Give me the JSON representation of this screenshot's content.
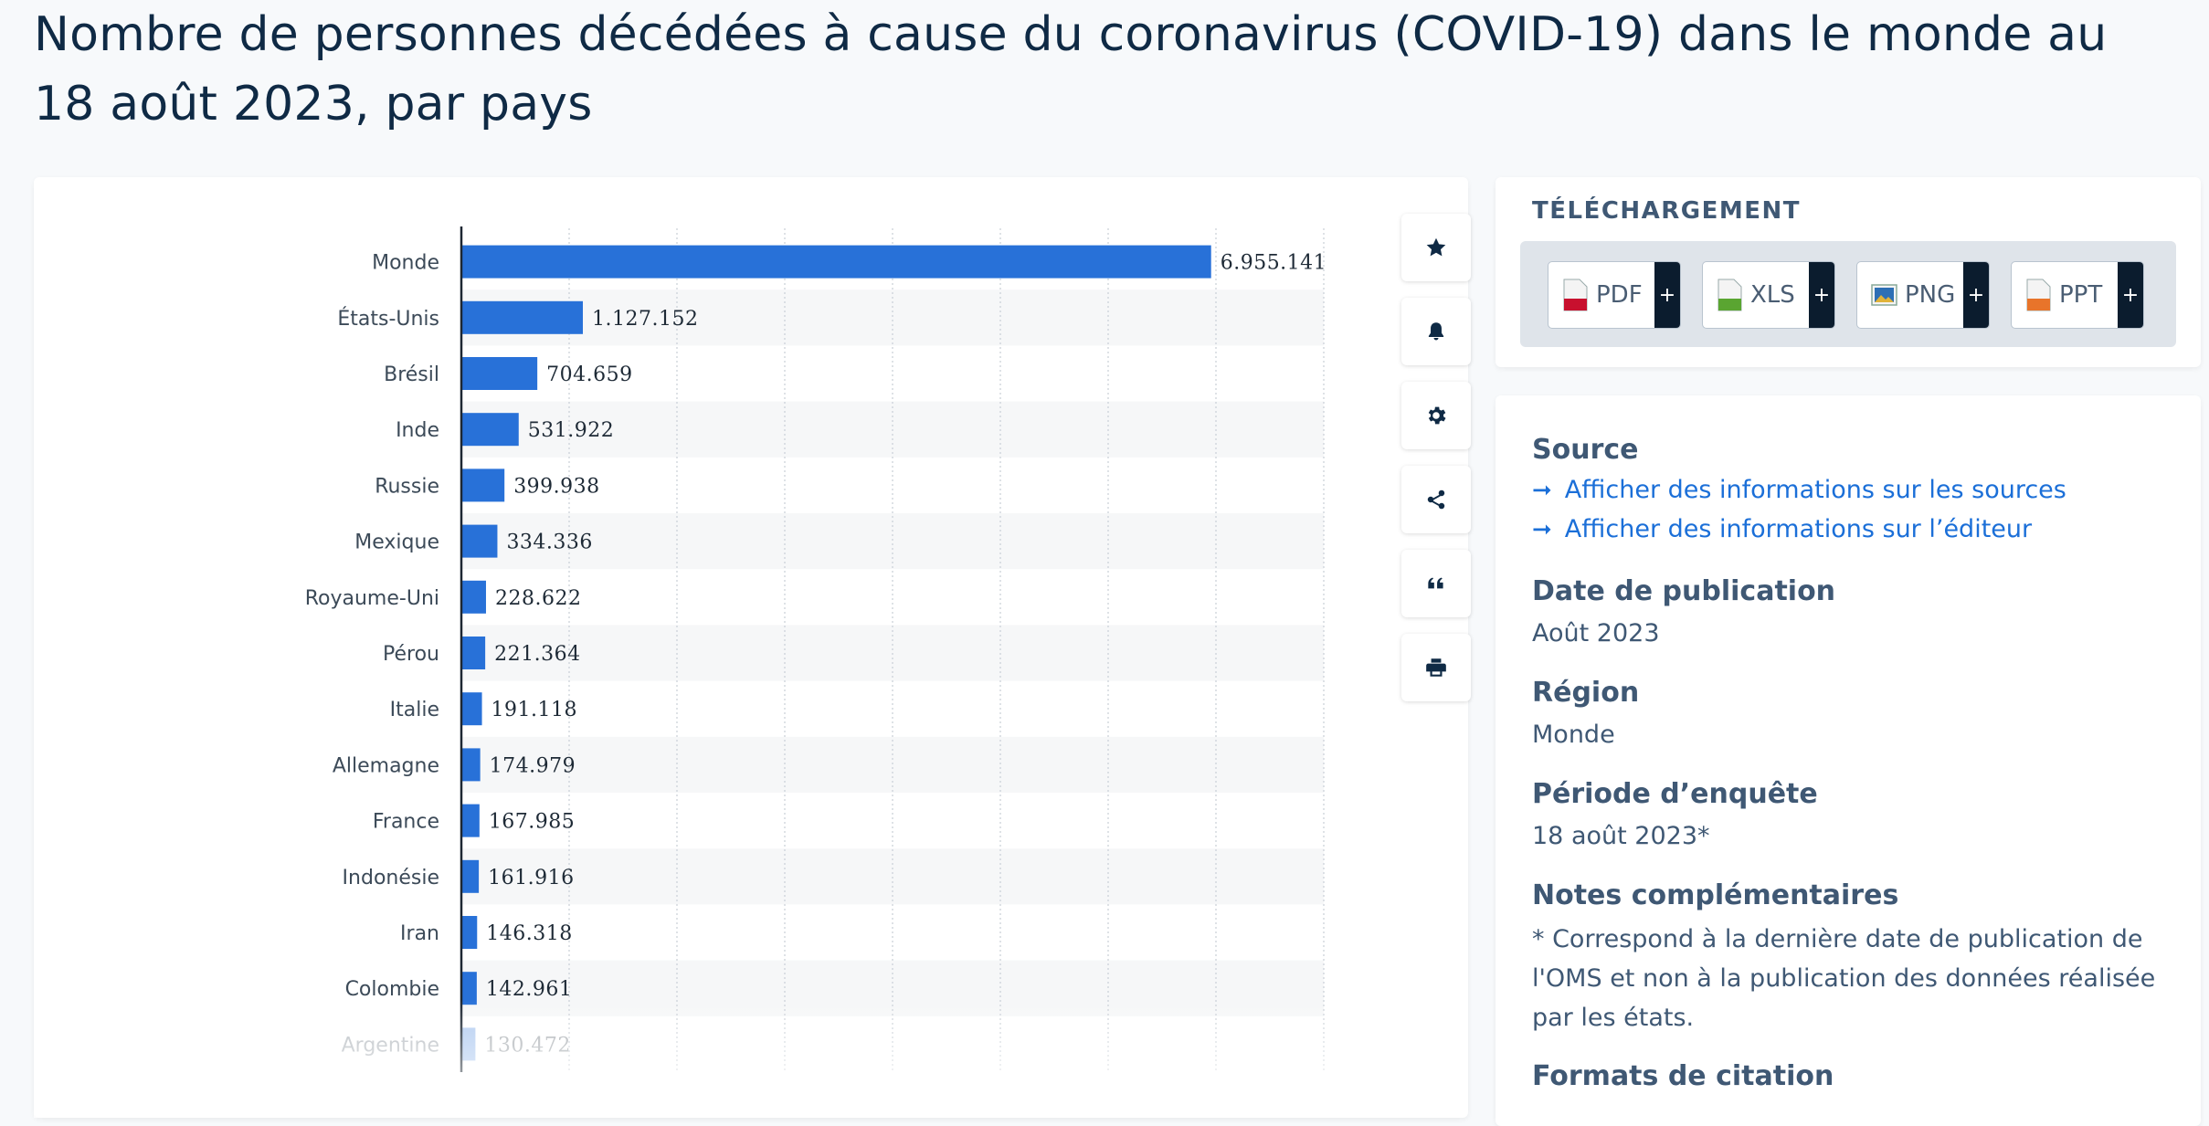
{
  "page": {
    "title": "Nombre de personnes décédées à cause du coronavirus (COVID-19) dans le monde au 18 août 2023, par pays"
  },
  "chart_data": {
    "type": "bar",
    "orientation": "horizontal",
    "categories": [
      "Monde",
      "États-Unis",
      "Brésil",
      "Inde",
      "Russie",
      "Mexique",
      "Royaume-Uni",
      "Pérou",
      "Italie",
      "Allemagne",
      "France",
      "Indonésie",
      "Iran",
      "Colombie",
      "Argentine"
    ],
    "values": [
      6955141,
      1127152,
      704659,
      531922,
      399938,
      334336,
      228622,
      221364,
      191118,
      174979,
      167985,
      161916,
      146318,
      142961,
      130472
    ],
    "value_labels": [
      "6.955.141",
      "1.127.152",
      "704.659",
      "531.922",
      "399.938",
      "334.336",
      "228.622",
      "221.364",
      "191.118",
      "174.979",
      "167.985",
      "161.916",
      "146.318",
      "142.961",
      "130.472"
    ],
    "xlim": [
      0,
      8000000
    ],
    "grid": true,
    "bar_color": "#2871d8"
  },
  "chart_tools": [
    {
      "icon": "star-icon",
      "label": "favorite"
    },
    {
      "icon": "bell-icon",
      "label": "notification"
    },
    {
      "icon": "gear-icon",
      "label": "settings"
    },
    {
      "icon": "share-icon",
      "label": "share"
    },
    {
      "icon": "quote-icon",
      "label": "cite"
    },
    {
      "icon": "print-icon",
      "label": "print"
    }
  ],
  "download": {
    "title": "TÉLÉCHARGEMENT",
    "buttons": [
      {
        "label": "PDF",
        "icon": "pdf-file-icon",
        "color": "#c8102e"
      },
      {
        "label": "XLS",
        "icon": "xls-file-icon",
        "color": "#5aa531"
      },
      {
        "label": "PNG",
        "icon": "png-file-icon",
        "color": "#2d6fb5"
      },
      {
        "label": "PPT",
        "icon": "ppt-file-icon",
        "color": "#e8742a"
      }
    ],
    "plus": "+"
  },
  "info": {
    "source_heading": "Source",
    "source_link": "Afficher des informations sur les sources",
    "publisher_link": "Afficher des informations sur l’éditeur",
    "pub_date_heading": "Date de publication",
    "pub_date": "Août 2023",
    "region_heading": "Région",
    "region": "Monde",
    "period_heading": "Période d’enquête",
    "period": "18 août 2023*",
    "notes_heading": "Notes complémentaires",
    "notes": "* Correspond à la dernière date de publication de l'OMS et non à la publication des données réalisée par les états.",
    "citation_heading": "Formats de citation"
  }
}
